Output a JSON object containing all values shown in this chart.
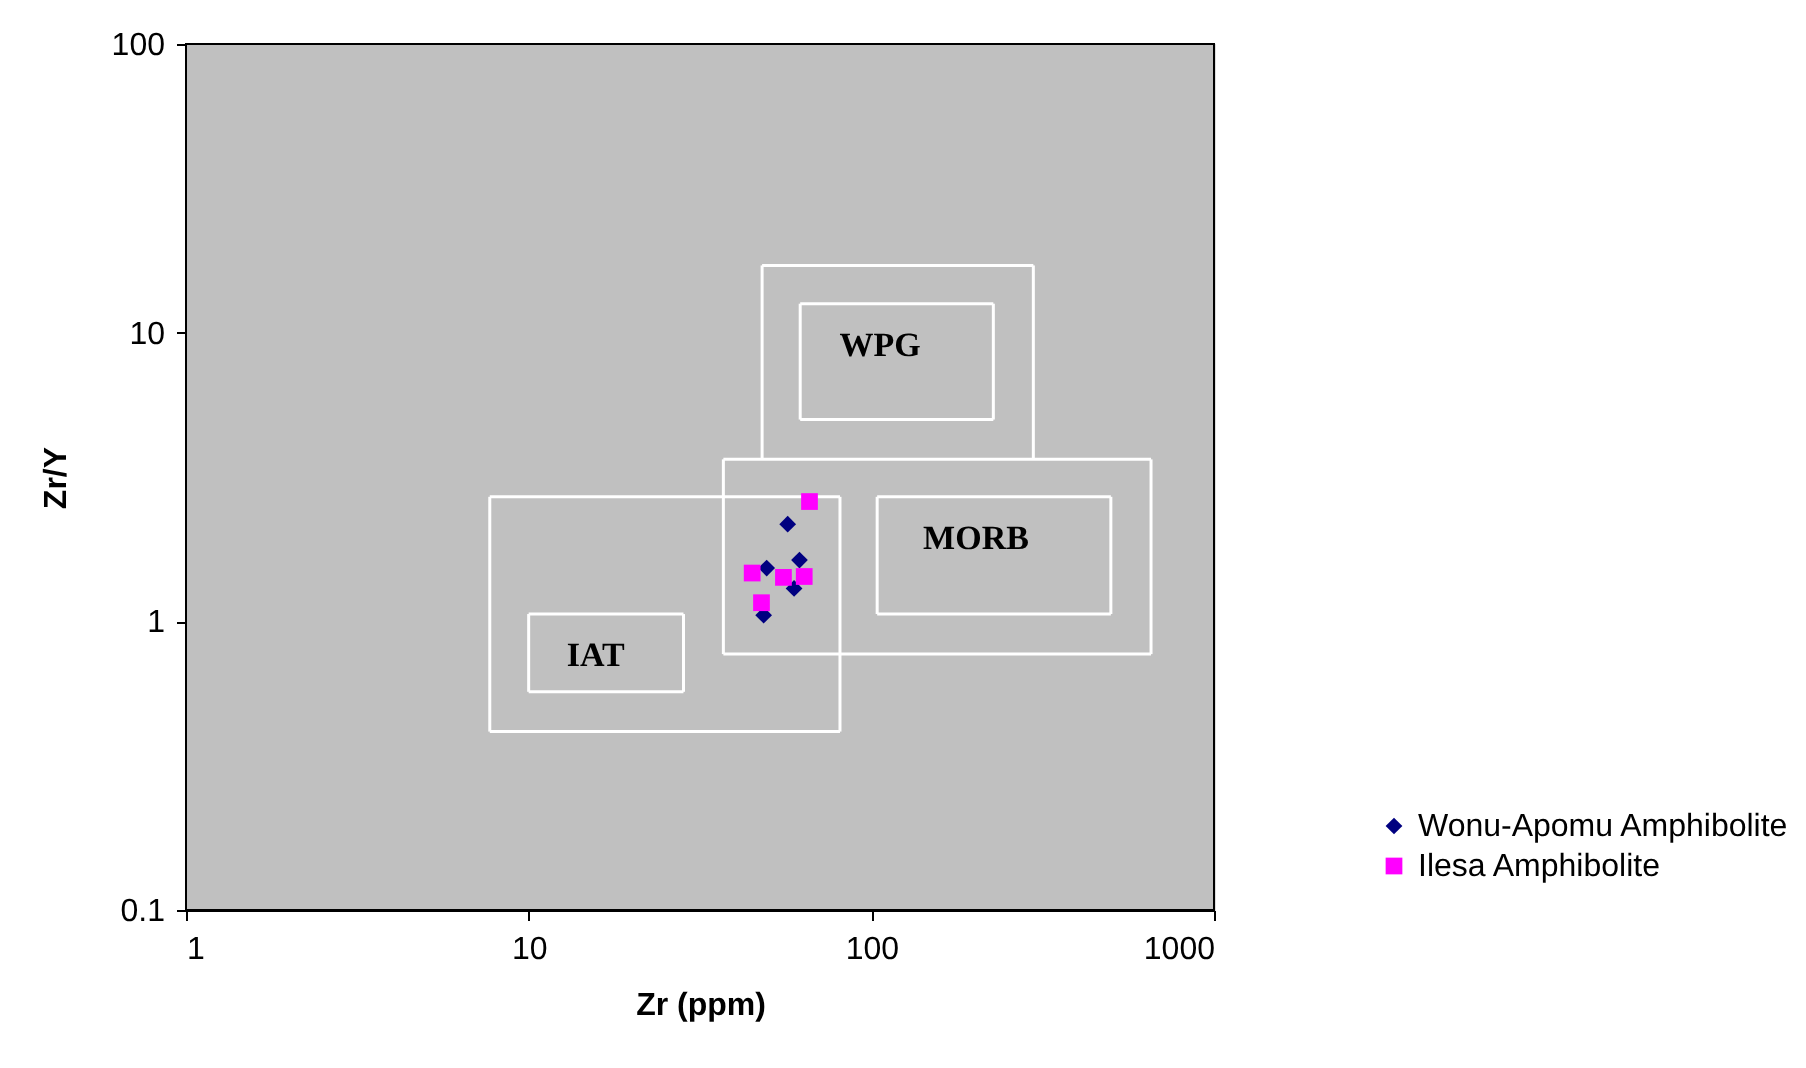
{
  "chart_data": {
    "type": "scatter",
    "xlabel": "Zr (ppm)",
    "ylabel": "Zr/Y",
    "log": "xy",
    "xlim": [
      1,
      1000
    ],
    "ylim": [
      0.1,
      100
    ],
    "xticks": [
      1,
      10,
      100,
      1000
    ],
    "yticks": [
      0.1,
      1,
      10,
      100
    ],
    "legend": "right",
    "series": [
      {
        "type": "line",
        "color": "#ffffff",
        "marker": "none",
        "x": [
          7.7,
          81
        ],
        "values": [
          0.415,
          0.415
        ]
      },
      {
        "type": "line",
        "color": "#ffffff",
        "marker": "none",
        "x": [
          7.7,
          81
        ],
        "values": [
          2.7,
          2.7
        ]
      },
      {
        "type": "line",
        "color": "#ffffff",
        "marker": "none",
        "x": [
          7.7,
          7.7
        ],
        "values": [
          0.415,
          2.7
        ]
      },
      {
        "type": "line",
        "color": "#ffffff",
        "marker": "none",
        "x": [
          81,
          81
        ],
        "values": [
          0.415,
          2.7
        ]
      },
      {
        "type": "line",
        "color": "#ffffff",
        "marker": "none",
        "x": [
          10,
          28.3
        ],
        "values": [
          0.57,
          0.57
        ]
      },
      {
        "type": "line",
        "color": "#ffffff",
        "marker": "none",
        "x": [
          10,
          28.3
        ],
        "values": [
          1.06,
          1.06
        ]
      },
      {
        "type": "line",
        "color": "#ffffff",
        "marker": "none",
        "x": [
          10,
          10
        ],
        "values": [
          0.57,
          1.06
        ]
      },
      {
        "type": "line",
        "color": "#ffffff",
        "marker": "none",
        "x": [
          28.3,
          28.3
        ],
        "values": [
          0.57,
          1.06
        ]
      },
      {
        "type": "line",
        "color": "#ffffff",
        "marker": "none",
        "x": [
          37,
          655
        ],
        "values": [
          0.77,
          0.77
        ]
      },
      {
        "type": "line",
        "color": "#ffffff",
        "marker": "none",
        "x": [
          37,
          655
        ],
        "values": [
          3.64,
          3.64
        ]
      },
      {
        "type": "line",
        "color": "#ffffff",
        "marker": "none",
        "x": [
          37,
          37
        ],
        "values": [
          0.77,
          3.64
        ]
      },
      {
        "type": "line",
        "color": "#ffffff",
        "marker": "none",
        "x": [
          655,
          655
        ],
        "values": [
          0.77,
          3.64
        ]
      },
      {
        "type": "line",
        "color": "#ffffff",
        "marker": "none",
        "x": [
          104,
          500
        ],
        "values": [
          1.06,
          1.06
        ]
      },
      {
        "type": "line",
        "color": "#ffffff",
        "marker": "none",
        "x": [
          104,
          500
        ],
        "values": [
          2.7,
          2.7
        ]
      },
      {
        "type": "line",
        "color": "#ffffff",
        "marker": "none",
        "x": [
          104,
          104
        ],
        "values": [
          1.06,
          2.7
        ]
      },
      {
        "type": "line",
        "color": "#ffffff",
        "marker": "none",
        "x": [
          500,
          500
        ],
        "values": [
          1.06,
          2.7
        ]
      },
      {
        "type": "line",
        "color": "#ffffff",
        "marker": "none",
        "x": [
          48,
          297
        ],
        "values": [
          17.1,
          17.1
        ]
      },
      {
        "type": "line",
        "color": "#ffffff",
        "marker": "none",
        "x": [
          48,
          48
        ],
        "values": [
          3.64,
          17.1
        ]
      },
      {
        "type": "line",
        "color": "#ffffff",
        "marker": "none",
        "x": [
          297,
          297
        ],
        "values": [
          3.64,
          17.1
        ]
      },
      {
        "type": "line",
        "color": "#ffffff",
        "marker": "none",
        "x": [
          62,
          227
        ],
        "values": [
          5.0,
          5.0
        ]
      },
      {
        "type": "line",
        "color": "#ffffff",
        "marker": "none",
        "x": [
          62,
          227
        ],
        "values": [
          12.6,
          12.6
        ]
      },
      {
        "type": "line",
        "color": "#ffffff",
        "marker": "none",
        "x": [
          62,
          62
        ],
        "values": [
          5.0,
          12.6
        ]
      },
      {
        "type": "line",
        "color": "#ffffff",
        "marker": "none",
        "x": [
          227,
          227
        ],
        "values": [
          5.0,
          12.6
        ]
      },
      {
        "name": "Wonu-Apomu Amphibolite",
        "color": "#000080",
        "marker": "diamond",
        "x": [
          57,
          49.5,
          61.7,
          59.5,
          48.5
        ],
        "values": [
          2.17,
          1.53,
          1.63,
          1.3,
          1.05
        ]
      },
      {
        "name": "Ilesa Amphibolite",
        "color": "#ff00ff",
        "marker": "square",
        "x": [
          66,
          44.9,
          55.4,
          63.7,
          47.8
        ],
        "values": [
          2.6,
          1.47,
          1.42,
          1.43,
          1.16
        ]
      }
    ],
    "annotations": [
      {
        "text": "WPG",
        "x": 106,
        "y": 12.6
      },
      {
        "text": "MORB",
        "x": 202,
        "y": 2.7
      },
      {
        "text": "IAT",
        "x": 15.7,
        "y": 1.06
      }
    ]
  }
}
